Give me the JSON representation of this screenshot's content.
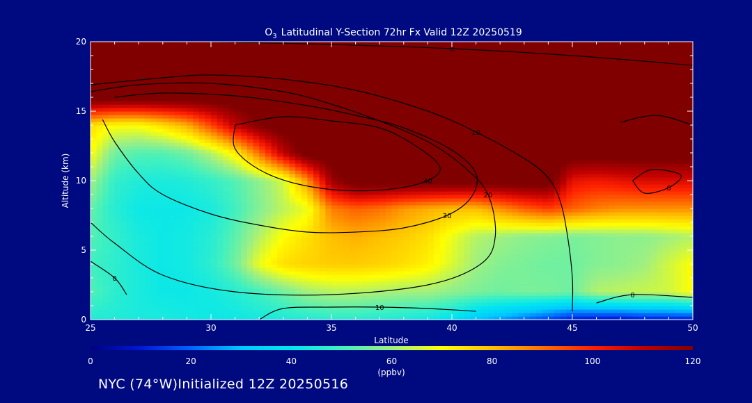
{
  "chart_data": {
    "type": "heatmap",
    "title": {
      "species": "O",
      "species_subscript": "3",
      "rest": "Latitudinal Y-Section 72hr  Fx Valid 12Z 20250519"
    },
    "xlabel": "Latitude",
    "ylabel": "Altitude (km)",
    "xlim": [
      25,
      50
    ],
    "ylim": [
      0,
      20
    ],
    "x_ticks": [
      "25",
      "30",
      "35",
      "40",
      "45",
      "50"
    ],
    "y_ticks": [
      "0",
      "5",
      "10",
      "15",
      "20"
    ],
    "colorbar": {
      "label": "(ppbv)",
      "range": [
        0,
        120
      ],
      "ticks": [
        "0",
        "20",
        "40",
        "60",
        "80",
        "100",
        "120"
      ],
      "colors": [
        "#000080",
        "#0018d8",
        "#0064ff",
        "#00c8ff",
        "#00e6f0",
        "#40f0c0",
        "#a0f080",
        "#ffff00",
        "#ffc000",
        "#ff7000",
        "#ff2000",
        "#c00000",
        "#800000"
      ]
    },
    "color_field": {
      "description_units": "ppbv",
      "lat": [
        25,
        26,
        27,
        28,
        29,
        30,
        31,
        32,
        33,
        34,
        35,
        36,
        37,
        38,
        39,
        40,
        41,
        42,
        43,
        44,
        45,
        46,
        47,
        48,
        49,
        50
      ],
      "alt": [
        0,
        2,
        4,
        6,
        8,
        10,
        12,
        14,
        16,
        18,
        20
      ],
      "values": [
        [
          45,
          45,
          44,
          44,
          43,
          42,
          42,
          43,
          44,
          45,
          46,
          46,
          45,
          44,
          42,
          38,
          30,
          25,
          20,
          15,
          10,
          8,
          8,
          10,
          10,
          10
        ],
        [
          52,
          47,
          44,
          42,
          42,
          43,
          46,
          50,
          55,
          60,
          62,
          62,
          61,
          60,
          60,
          58,
          56,
          55,
          56,
          56,
          55,
          62,
          63,
          64,
          65,
          70
        ],
        [
          50,
          47,
          44,
          42,
          43,
          47,
          55,
          68,
          75,
          77,
          78,
          78,
          77,
          75,
          72,
          66,
          60,
          57,
          56,
          55,
          55,
          57,
          58,
          60,
          65,
          70
        ],
        [
          52,
          48,
          44,
          42,
          43,
          46,
          53,
          62,
          70,
          75,
          80,
          82,
          80,
          78,
          75,
          68,
          62,
          60,
          58,
          57,
          56,
          57,
          58,
          58,
          60,
          62
        ],
        [
          54,
          46,
          42,
          42,
          42,
          44,
          50,
          57,
          63,
          68,
          88,
          92,
          90,
          85,
          82,
          80,
          80,
          86,
          92,
          96,
          92,
          88,
          86,
          86,
          86,
          86
        ],
        [
          60,
          48,
          45,
          44,
          45,
          48,
          52,
          58,
          65,
          85,
          115,
          125,
          125,
          125,
          125,
          125,
          125,
          125,
          125,
          125,
          104,
          102,
          104,
          106,
          106,
          106
        ],
        [
          70,
          55,
          52,
          52,
          55,
          62,
          72,
          90,
          110,
          125,
          125,
          125,
          125,
          125,
          125,
          125,
          125,
          125,
          125,
          125,
          125,
          125,
          125,
          125,
          125,
          125
        ],
        [
          75,
          70,
          70,
          75,
          82,
          95,
          110,
          120,
          125,
          125,
          125,
          125,
          125,
          125,
          125,
          125,
          125,
          125,
          125,
          125,
          125,
          125,
          125,
          125,
          125,
          125
        ],
        [
          125,
          125,
          125,
          125,
          125,
          125,
          125,
          125,
          125,
          125,
          125,
          125,
          125,
          125,
          125,
          125,
          125,
          125,
          125,
          125,
          125,
          125,
          125,
          125,
          125,
          125
        ],
        [
          125,
          125,
          125,
          125,
          125,
          125,
          125,
          125,
          125,
          125,
          125,
          125,
          125,
          125,
          125,
          125,
          125,
          125,
          125,
          125,
          125,
          125,
          125,
          125,
          125,
          125
        ],
        [
          125,
          125,
          125,
          125,
          125,
          125,
          125,
          125,
          125,
          125,
          125,
          125,
          125,
          125,
          125,
          125,
          125,
          125,
          125,
          125,
          125,
          125,
          125,
          125,
          125,
          125
        ]
      ]
    },
    "contours": [
      {
        "label": "10",
        "points": [
          [
            25,
            16.9
          ],
          [
            28,
            17.4
          ],
          [
            30,
            17.6
          ],
          [
            33,
            17.3
          ],
          [
            36,
            16.5
          ],
          [
            39,
            15.0
          ],
          [
            41,
            13.5
          ],
          [
            43,
            11.6
          ],
          [
            44,
            10.2
          ],
          [
            44.5,
            8.5
          ],
          [
            44.8,
            6.0
          ],
          [
            45,
            3.0
          ],
          [
            45,
            0.6
          ]
        ]
      },
      {
        "label": "20",
        "points": [
          [
            25,
            16.4
          ],
          [
            27,
            16.9
          ],
          [
            30,
            17.0
          ],
          [
            33,
            16.4
          ],
          [
            35,
            15.5
          ],
          [
            37,
            14.3
          ],
          [
            39,
            12.8
          ],
          [
            40.5,
            11.0
          ],
          [
            41.5,
            9.0
          ],
          [
            41.8,
            6.0
          ],
          [
            41.2,
            4.0
          ],
          [
            39,
            2.5
          ],
          [
            35,
            1.8
          ],
          [
            31,
            2.0
          ],
          [
            28,
            3.2
          ],
          [
            26,
            5.5
          ],
          [
            25,
            7.0
          ]
        ]
      },
      {
        "label": "30",
        "points": [
          [
            26,
            16.0
          ],
          [
            28,
            16.3
          ],
          [
            31,
            16.1
          ],
          [
            34,
            15.4
          ],
          [
            36,
            14.7
          ],
          [
            38,
            13.8
          ],
          [
            40,
            12.2
          ],
          [
            41,
            10.5
          ],
          [
            40.8,
            8.8
          ],
          [
            39.8,
            7.5
          ],
          [
            38,
            6.6
          ],
          [
            36,
            6.3
          ],
          [
            34,
            6.3
          ],
          [
            32,
            6.8
          ],
          [
            30,
            7.6
          ],
          [
            28,
            9.0
          ],
          [
            27,
            10.5
          ],
          [
            26,
            12.8
          ],
          [
            25.5,
            14.4
          ]
        ]
      },
      {
        "label": "40",
        "points": [
          [
            31,
            14.0
          ],
          [
            33,
            14.6
          ],
          [
            35,
            14.3
          ],
          [
            37,
            13.8
          ],
          [
            38.5,
            12.5
          ],
          [
            39.5,
            11.0
          ],
          [
            39,
            10.0
          ],
          [
            37.5,
            9.4
          ],
          [
            35.5,
            9.3
          ],
          [
            33.5,
            9.8
          ],
          [
            32,
            10.8
          ],
          [
            31,
            12.3
          ],
          [
            31,
            14.0
          ]
        ]
      },
      {
        "label": "10",
        "points": [
          [
            32,
            0.0
          ],
          [
            33,
            0.8
          ],
          [
            35,
            0.9
          ],
          [
            37,
            0.9
          ],
          [
            39,
            0.8
          ],
          [
            41,
            0.6
          ]
        ]
      },
      {
        "label": "0",
        "points": [
          [
            25,
            4.2
          ],
          [
            26,
            3.0
          ],
          [
            26.5,
            1.8
          ]
        ]
      },
      {
        "label": "0",
        "points": [
          [
            30,
            20.0
          ],
          [
            35,
            19.8
          ],
          [
            40,
            19.5
          ],
          [
            45,
            19.0
          ],
          [
            50,
            18.3
          ]
        ]
      },
      {
        "label": "6",
        "points": [
          [
            47.5,
            10.0
          ],
          [
            48.3,
            10.8
          ],
          [
            49.5,
            10.4
          ],
          [
            49.0,
            9.5
          ],
          [
            48.0,
            9.1
          ],
          [
            47.5,
            10.0
          ]
        ]
      },
      {
        "label": "0",
        "points": [
          [
            46,
            1.2
          ],
          [
            47.5,
            1.8
          ],
          [
            50,
            1.6
          ]
        ]
      },
      {
        "label": "",
        "points": [
          [
            47,
            14.2
          ],
          [
            48.5,
            14.7
          ],
          [
            50,
            14.0
          ]
        ]
      }
    ]
  },
  "footer": {
    "location": "NYC (74°W)",
    "init_text": "Initialized 12Z 20250516"
  }
}
